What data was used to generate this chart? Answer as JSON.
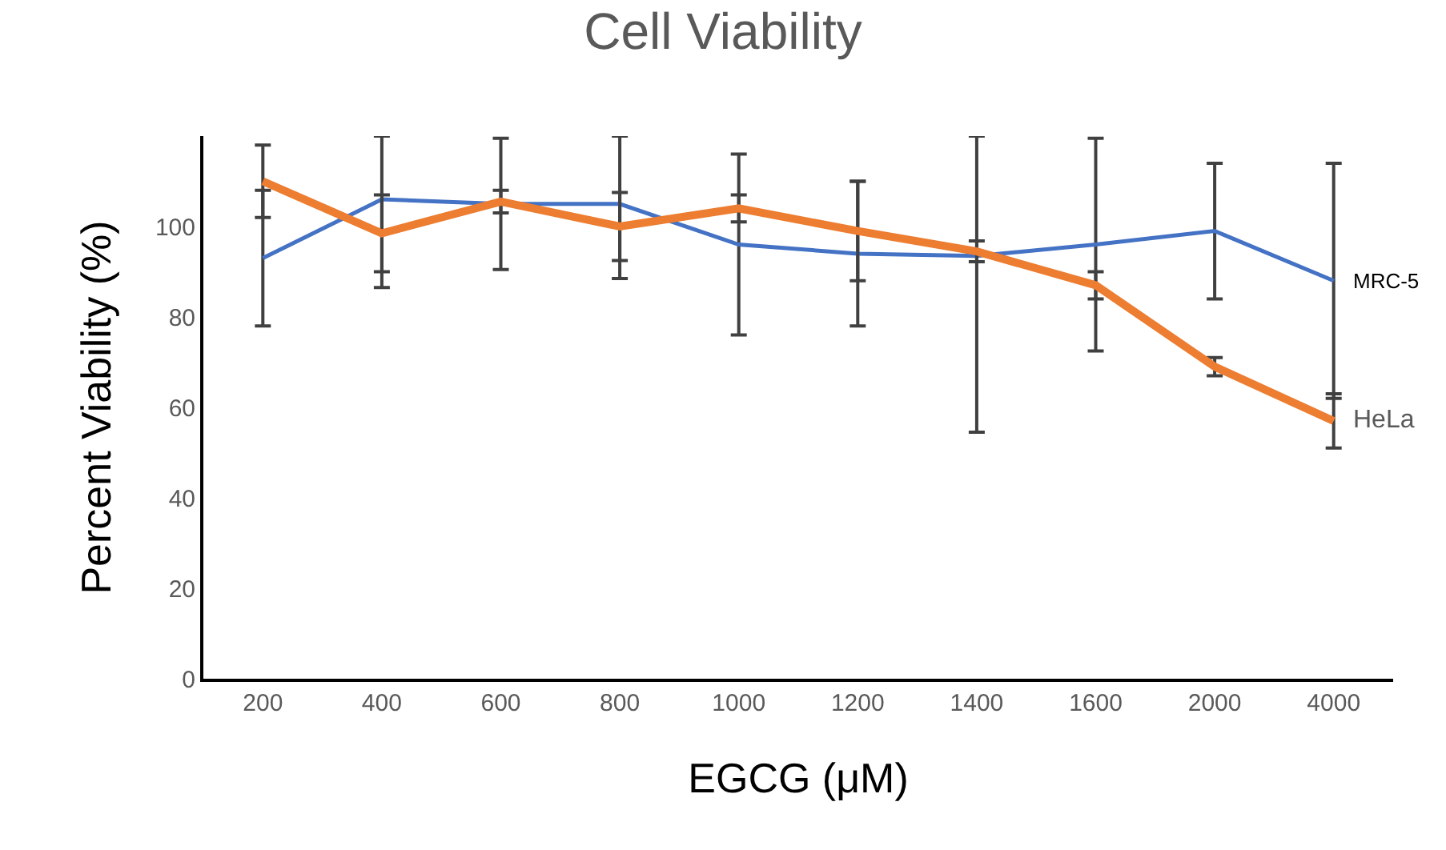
{
  "chart_data": {
    "type": "line",
    "title": "Cell Viability",
    "xlabel": "EGCG (μM)",
    "ylabel": "Percent Viability (%)",
    "categories": [
      "200",
      "400",
      "600",
      "800",
      "1000",
      "1200",
      "1400",
      "1600",
      "2000",
      "4000"
    ],
    "series": [
      {
        "name": "MRC-5",
        "color": "#4472c4",
        "values": [
          93,
          106,
          105,
          105,
          96,
          94,
          93.5,
          96,
          99,
          88
        ],
        "errors": [
          15,
          [
            86.5,
            120
          ],
          14.5,
          [
            88.5,
            120
          ],
          20,
          16,
          [
            54.5,
            120
          ],
          23.5,
          15,
          26
        ]
      },
      {
        "name": "HeLa",
        "color": "#ed7d31",
        "values": [
          110,
          98.5,
          105.5,
          100,
          104,
          99,
          94.5,
          87,
          69,
          57
        ],
        "errors": [
          8,
          8.5,
          2.5,
          7.5,
          3,
          11,
          2.3,
          3,
          2,
          6
        ]
      }
    ],
    "ylim": [
      0,
      120
    ],
    "yticks": [
      0,
      20,
      40,
      60,
      80,
      100
    ],
    "legend": false,
    "marker": "none",
    "line_style": "solid"
  }
}
